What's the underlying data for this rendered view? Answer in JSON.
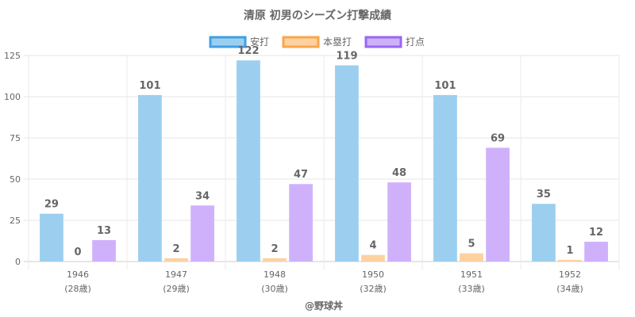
{
  "chart_data": {
    "type": "bar",
    "title": "清原 初男のシーズン打撃成績",
    "categories": [
      "1946",
      "1947",
      "1948",
      "1950",
      "1951",
      "1952"
    ],
    "category_sublabels": [
      "(28歳)",
      "(29歳)",
      "(30歳)",
      "(32歳)",
      "(33歳)",
      "(34歳)"
    ],
    "series": [
      {
        "name": "安打",
        "values": [
          29,
          101,
          122,
          119,
          101,
          35
        ],
        "color": "#9ccfef",
        "border": "#3fa0e6"
      },
      {
        "name": "本塁打",
        "values": [
          0,
          2,
          2,
          4,
          5,
          1
        ],
        "color": "#fdd1a0",
        "border": "#f8a64a"
      },
      {
        "name": "打点",
        "values": [
          13,
          34,
          47,
          48,
          69,
          12
        ],
        "color": "#cfb1fb",
        "border": "#9868f0"
      }
    ],
    "y_ticks": [
      0,
      25,
      50,
      75,
      100,
      125
    ],
    "ylim": [
      0,
      125
    ],
    "grid": true,
    "legend_position": "top",
    "credit": "@野球丼"
  }
}
